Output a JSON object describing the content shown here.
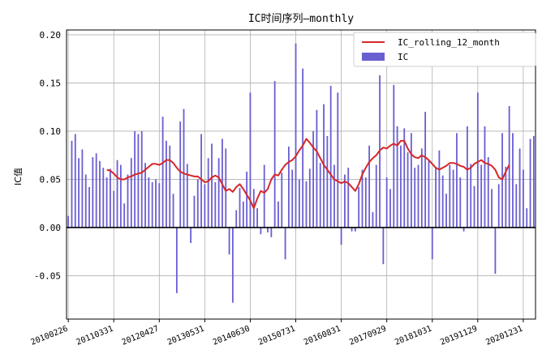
{
  "chart_data": {
    "type": "bar",
    "title": "IC时间序列—monthly",
    "xlabel": "",
    "ylabel": "IC值",
    "ylim": [
      -0.095,
      0.205
    ],
    "yticks": [
      -0.05,
      0.0,
      0.05,
      0.1,
      0.15,
      0.2
    ],
    "ytick_labels": [
      "-0.05",
      "0.00",
      "0.05",
      "0.10",
      "0.15",
      "0.20"
    ],
    "xtick_labels": [
      "20100226",
      "20110331",
      "20120427",
      "20130531",
      "20140630",
      "20150731",
      "20160831",
      "20170929",
      "20181031",
      "20191129",
      "20201231"
    ],
    "xtick_index": [
      0,
      13,
      26,
      39,
      52,
      65,
      78,
      91,
      104,
      117,
      130
    ],
    "grid": true,
    "legend_position": "top-right",
    "colors": {
      "bar": "#6a5fd1",
      "line": "#d62728",
      "zero_line": "#000000"
    },
    "series": [
      {
        "name": "IC",
        "kind": "bar",
        "values": [
          0.012,
          0.09,
          0.097,
          0.072,
          0.081,
          0.055,
          0.042,
          0.073,
          0.077,
          0.069,
          0.062,
          0.052,
          0.061,
          0.038,
          0.07,
          0.065,
          0.025,
          0.055,
          0.072,
          0.1,
          0.097,
          0.1,
          0.067,
          0.052,
          0.047,
          0.05,
          0.046,
          0.115,
          0.09,
          0.085,
          0.035,
          -0.068,
          0.11,
          0.123,
          0.066,
          -0.016,
          0.033,
          0.05,
          0.097,
          0.045,
          0.072,
          0.087,
          0.047,
          0.072,
          0.092,
          0.082,
          -0.028,
          -0.078,
          0.018,
          0.041,
          0.027,
          0.058,
          0.14,
          0.04,
          0.02,
          -0.007,
          0.065,
          -0.005,
          -0.01,
          0.152,
          0.027,
          0.057,
          -0.033,
          0.084,
          0.06,
          0.191,
          0.05,
          0.165,
          0.048,
          0.061,
          0.1,
          0.122,
          0.067,
          0.128,
          0.095,
          0.147,
          0.065,
          0.14,
          -0.018,
          0.055,
          0.062,
          -0.004,
          -0.004,
          0.042,
          0.06,
          0.052,
          0.085,
          0.016,
          0.065,
          0.158,
          -0.038,
          0.052,
          0.04,
          0.148,
          0.105,
          0.085,
          0.103,
          0.078,
          0.098,
          0.062,
          0.065,
          0.082,
          0.12,
          0.07,
          -0.033,
          0.062,
          0.08,
          0.054,
          0.035,
          0.065,
          0.06,
          0.098,
          0.052,
          -0.004,
          0.105,
          0.066,
          0.043,
          0.14,
          0.065,
          0.105,
          0.073,
          0.04,
          -0.048,
          0.045,
          0.098,
          0.063,
          0.126,
          0.098,
          0.045,
          0.082,
          0.06,
          0.02,
          0.092,
          0.095
        ]
      },
      {
        "name": "IC_rolling_12_month",
        "kind": "line",
        "start_index": 11,
        "values": [
          0.06,
          0.059,
          0.056,
          0.052,
          0.05,
          0.05,
          0.052,
          0.053,
          0.055,
          0.056,
          0.057,
          0.06,
          0.063,
          0.066,
          0.066,
          0.065,
          0.067,
          0.07,
          0.07,
          0.067,
          0.062,
          0.058,
          0.056,
          0.055,
          0.054,
          0.053,
          0.053,
          0.05,
          0.047,
          0.048,
          0.052,
          0.054,
          0.052,
          0.045,
          0.038,
          0.04,
          0.037,
          0.042,
          0.045,
          0.04,
          0.034,
          0.028,
          0.02,
          0.03,
          0.038,
          0.036,
          0.04,
          0.05,
          0.055,
          0.054,
          0.06,
          0.065,
          0.068,
          0.07,
          0.074,
          0.08,
          0.085,
          0.092,
          0.088,
          0.083,
          0.079,
          0.072,
          0.065,
          0.06,
          0.055,
          0.05,
          0.048,
          0.046,
          0.048,
          0.046,
          0.042,
          0.038,
          0.045,
          0.055,
          0.062,
          0.068,
          0.072,
          0.075,
          0.08,
          0.083,
          0.082,
          0.085,
          0.087,
          0.085,
          0.09,
          0.09,
          0.082,
          0.076,
          0.073,
          0.072,
          0.075,
          0.073,
          0.07,
          0.066,
          0.062,
          0.06,
          0.062,
          0.064,
          0.067,
          0.067,
          0.066,
          0.064,
          0.063,
          0.06,
          0.062,
          0.066,
          0.068,
          0.07,
          0.067,
          0.066,
          0.064,
          0.06,
          0.052,
          0.05,
          0.058,
          0.065
        ]
      }
    ]
  }
}
